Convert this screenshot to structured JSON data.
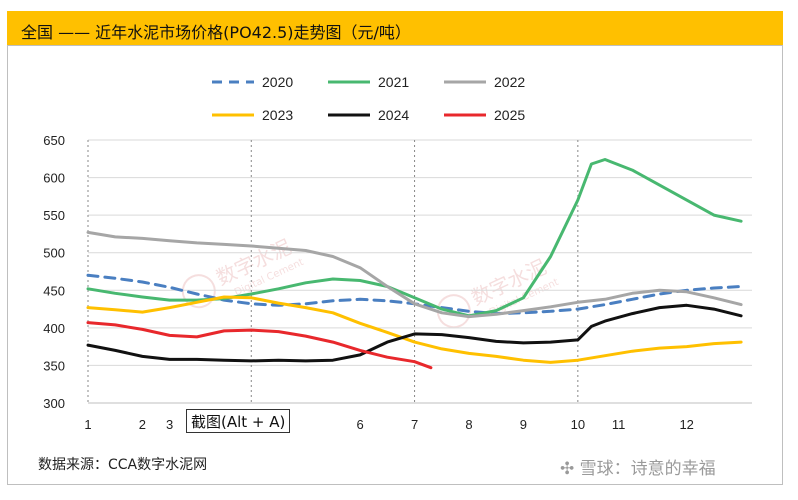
{
  "title": "全国 —— 近年水泥市场价格(PO42.5)走势图（元/吨）",
  "source": "数据来源：CCA数字水泥网",
  "footer_watermark": "雪球：诗意的幸福",
  "overlay_label": "截图(Alt + A)",
  "watermarks": [
    {
      "text": "数字水泥",
      "subtext": "Digital Cement"
    },
    {
      "text": "数字水泥",
      "subtext": "Digital Cement"
    }
  ],
  "chart_data": {
    "type": "line",
    "title": "全国 —— 近年水泥市场价格(PO42.5)走势图（元/吨）",
    "xlabel": "",
    "ylabel": "",
    "xlim": [
      1,
      13.2
    ],
    "ylim": [
      300,
      650
    ],
    "yticks": [
      300,
      350,
      400,
      450,
      500,
      550,
      600,
      650
    ],
    "xtick_labels": [
      {
        "label": "1",
        "x": 1.0
      },
      {
        "label": "2",
        "x": 2.0
      },
      {
        "label": "3",
        "x": 2.5
      },
      {
        "label": "6",
        "x": 6.0
      },
      {
        "label": "7",
        "x": 7.0
      },
      {
        "label": "8",
        "x": 8.0
      },
      {
        "label": "9",
        "x": 9.0
      },
      {
        "label": "10",
        "x": 10.0
      },
      {
        "label": "11",
        "x": 10.75
      },
      {
        "label": "12",
        "x": 12.0
      }
    ],
    "vlines": [
      1.0,
      4.0,
      7.0,
      10.0
    ],
    "legend_position": "top-center",
    "series": [
      {
        "name": "2020",
        "color": "#4a7fc1",
        "dash": "10,7",
        "x": [
          1.0,
          1.5,
          2.0,
          2.5,
          3.0,
          3.5,
          4.0,
          4.5,
          5.0,
          5.5,
          6.0,
          6.5,
          7.0,
          7.5,
          8.0,
          8.5,
          9.0,
          9.5,
          10.0,
          10.5,
          11.0,
          11.5,
          12.0,
          12.5,
          13.0
        ],
        "y": [
          470,
          466,
          461,
          454,
          445,
          437,
          432,
          430,
          432,
          436,
          438,
          436,
          432,
          427,
          422,
          419,
          420,
          422,
          425,
          431,
          438,
          445,
          450,
          453,
          455
        ]
      },
      {
        "name": "2021",
        "color": "#48b870",
        "dash": "",
        "x": [
          1.0,
          1.5,
          2.0,
          2.5,
          3.0,
          3.5,
          4.0,
          4.5,
          5.0,
          5.5,
          6.0,
          6.5,
          7.0,
          7.5,
          8.0,
          8.5,
          9.0,
          9.5,
          10.0,
          10.25,
          10.5,
          11.0,
          11.5,
          12.0,
          12.5,
          13.0
        ],
        "y": [
          452,
          446,
          441,
          437,
          437,
          439,
          445,
          452,
          460,
          465,
          463,
          455,
          440,
          425,
          416,
          423,
          440,
          495,
          570,
          618,
          624,
          610,
          590,
          570,
          550,
          542
        ]
      },
      {
        "name": "2022",
        "color": "#a6a6a6",
        "dash": "",
        "x": [
          1.0,
          1.5,
          2.0,
          2.5,
          3.0,
          3.5,
          4.0,
          4.5,
          5.0,
          5.5,
          6.0,
          6.5,
          7.0,
          7.5,
          8.0,
          8.5,
          9.0,
          9.5,
          10.0,
          10.5,
          11.0,
          11.5,
          12.0,
          12.5,
          13.0
        ],
        "y": [
          527,
          521,
          519,
          516,
          513,
          511,
          509,
          506,
          503,
          495,
          480,
          455,
          432,
          420,
          415,
          418,
          423,
          428,
          434,
          438,
          446,
          450,
          448,
          440,
          431
        ]
      },
      {
        "name": "2023",
        "color": "#ffc000",
        "dash": "",
        "x": [
          1.0,
          1.5,
          2.0,
          2.5,
          3.0,
          3.5,
          4.0,
          4.5,
          5.0,
          5.5,
          6.0,
          6.5,
          7.0,
          7.5,
          8.0,
          8.5,
          9.0,
          9.5,
          10.0,
          10.5,
          11.0,
          11.5,
          12.0,
          12.5,
          13.0
        ],
        "y": [
          427,
          424,
          421,
          427,
          434,
          441,
          440,
          433,
          427,
          420,
          406,
          394,
          381,
          372,
          366,
          362,
          357,
          354,
          357,
          363,
          369,
          373,
          375,
          379,
          381
        ]
      },
      {
        "name": "2024",
        "color": "#111111",
        "dash": "",
        "x": [
          1.0,
          1.5,
          2.0,
          2.5,
          3.0,
          3.5,
          4.0,
          4.5,
          5.0,
          5.5,
          6.0,
          6.5,
          7.0,
          7.5,
          8.0,
          8.5,
          9.0,
          9.5,
          10.0,
          10.25,
          10.5,
          11.0,
          11.5,
          12.0,
          12.5,
          13.0
        ],
        "y": [
          377,
          370,
          362,
          358,
          358,
          357,
          356,
          357,
          356,
          357,
          364,
          381,
          392,
          391,
          387,
          382,
          380,
          381,
          384,
          402,
          409,
          419,
          427,
          430,
          425,
          416
        ]
      },
      {
        "name": "2025",
        "color": "#e8282c",
        "dash": "",
        "x": [
          1.0,
          1.5,
          2.0,
          2.5,
          3.0,
          3.5,
          4.0,
          4.5,
          5.0,
          5.5,
          6.0,
          6.5,
          7.0,
          7.3
        ],
        "y": [
          407,
          404,
          398,
          390,
          388,
          396,
          397,
          395,
          389,
          381,
          370,
          361,
          355,
          347
        ]
      }
    ]
  }
}
